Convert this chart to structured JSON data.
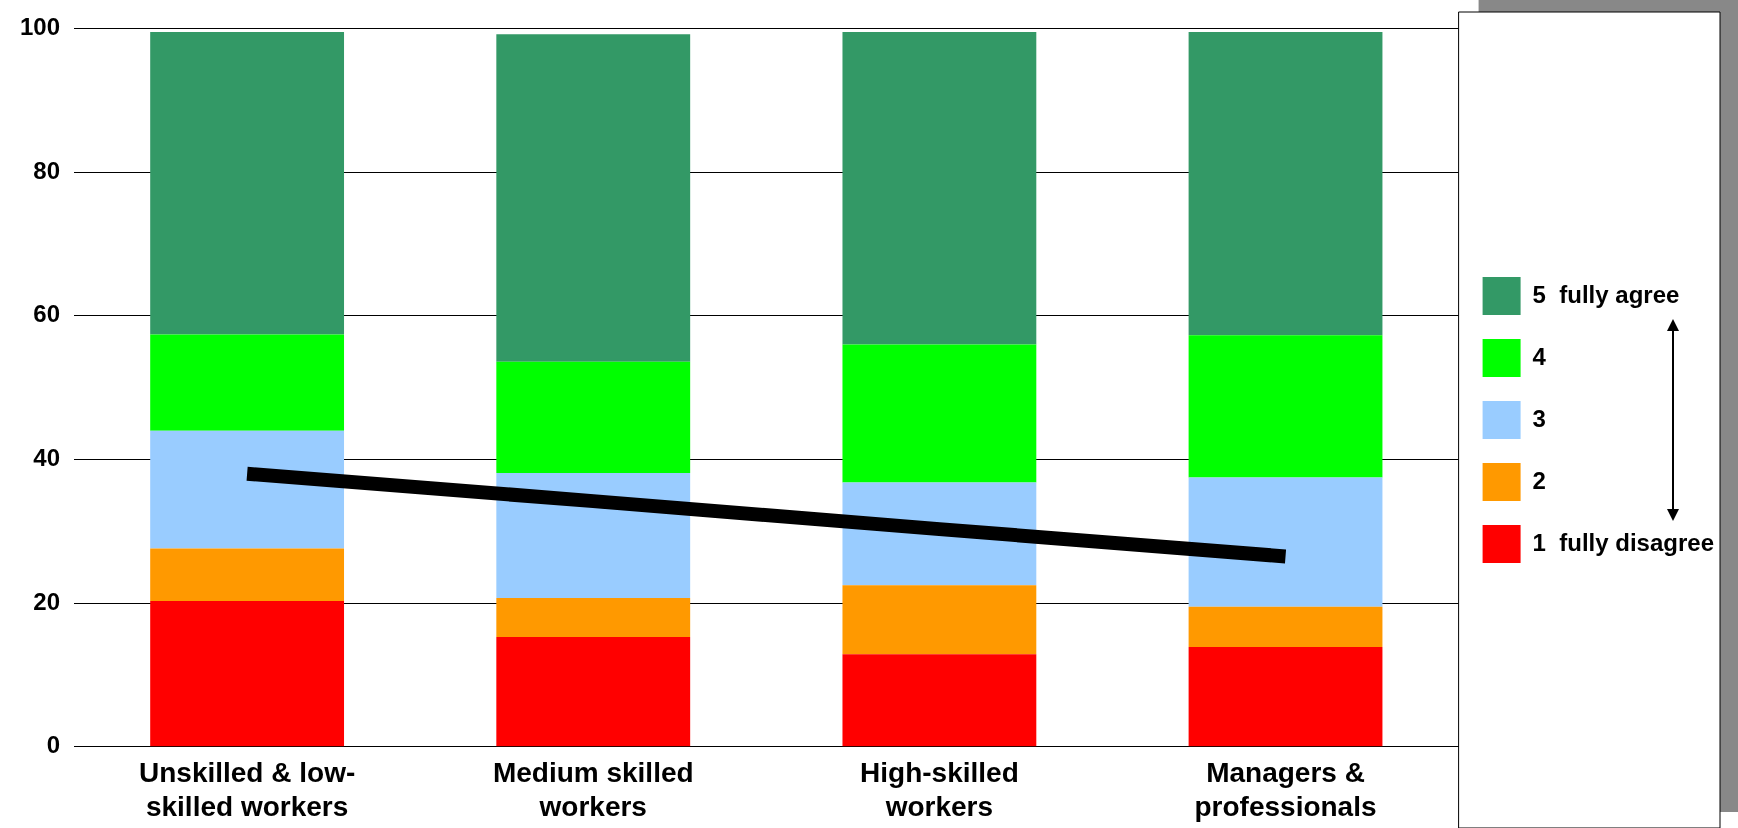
{
  "chart_data": {
    "type": "bar",
    "stacked": true,
    "categories": [
      "Unskilled & low-skilled workers",
      "Medium skilled workers",
      "High-skilled workers",
      "Managers & professionals"
    ],
    "series": [
      {
        "name": "1  fully disagree",
        "color": "#ff0000",
        "values": [
          20.3,
          15.3,
          12.9,
          13.9
        ]
      },
      {
        "name": "2",
        "color": "#ff9900",
        "values": [
          7.3,
          5.4,
          9.6,
          5.6
        ]
      },
      {
        "name": "3",
        "color": "#99ccff",
        "values": [
          16.4,
          17.4,
          14.3,
          18.0
        ]
      },
      {
        "name": "4",
        "color": "#00ff00",
        "values": [
          13.4,
          15.5,
          19.2,
          19.8
        ]
      },
      {
        "name": "5  fully agree",
        "color": "#339966",
        "values": [
          42.1,
          45.6,
          43.5,
          42.2
        ]
      },
      {
        "type": "line",
        "color": "#000000",
        "values": [
          38,
          34.2,
          30.3,
          26.5
        ]
      }
    ],
    "ylim": [
      0,
      100
    ],
    "yticks": [
      0,
      20,
      40,
      60,
      80,
      100
    ],
    "grid": "y",
    "legend": "right",
    "marker": "none"
  }
}
